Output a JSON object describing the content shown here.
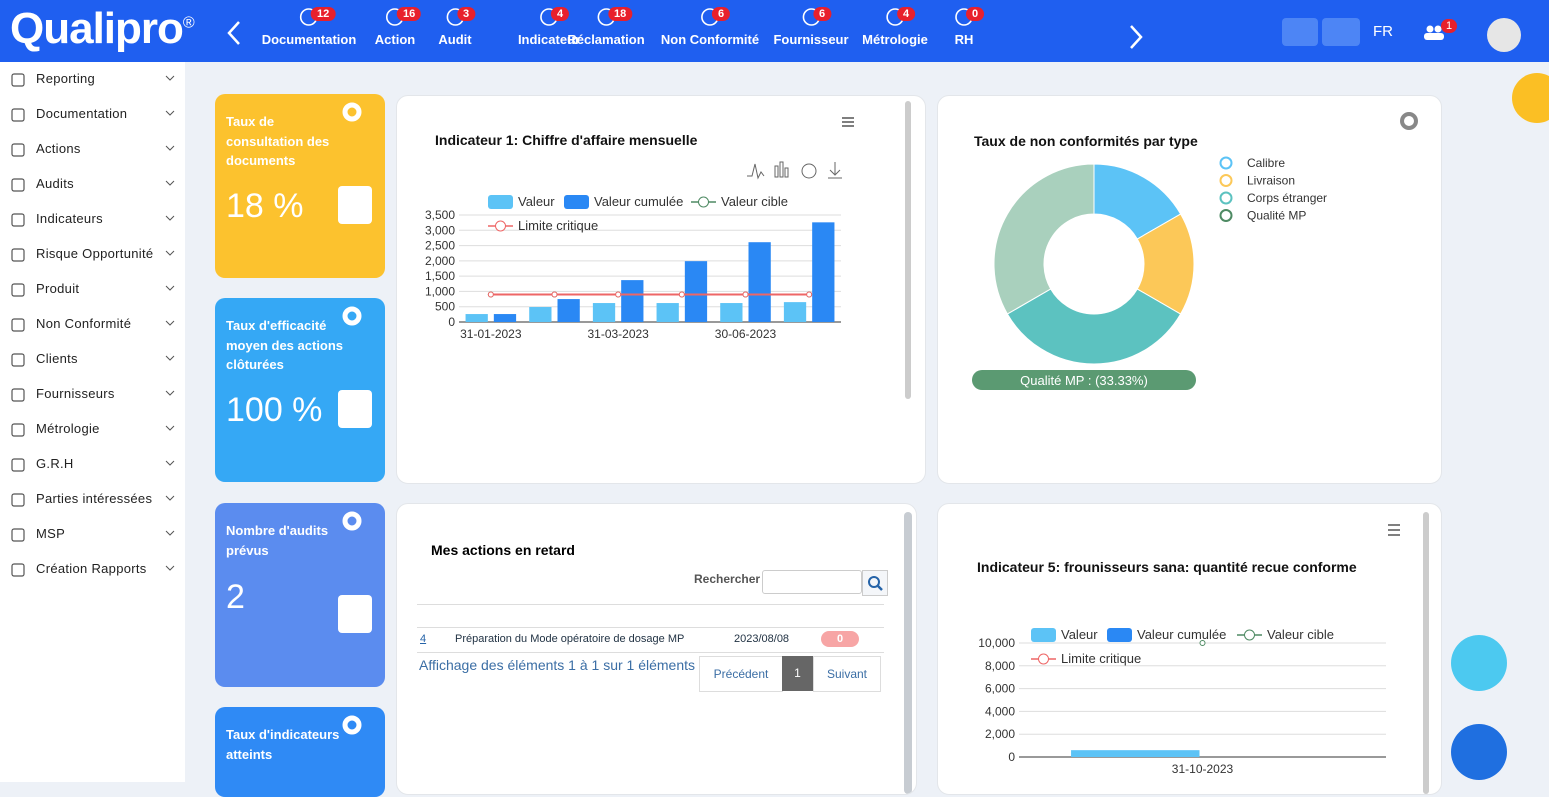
{
  "nav": {
    "logo": "Qualipro",
    "reg": "®",
    "items": [
      {
        "label": "Documentation",
        "count": 12
      },
      {
        "label": "Action",
        "count": 16
      },
      {
        "label": "Audit",
        "count": 3
      },
      {
        "label": "Indicateur",
        "count": 4
      },
      {
        "label": "Réclamation",
        "count": 18
      },
      {
        "label": "Non Conformité",
        "count": 6
      },
      {
        "label": "Fournisseur",
        "count": 6
      },
      {
        "label": "Métrologie",
        "count": 4
      },
      {
        "label": "RH",
        "count": 0
      }
    ],
    "lang": "FR",
    "notifications": 1
  },
  "sidebar": [
    "Reporting",
    "Documentation",
    "Actions",
    "Audits",
    "Indicateurs",
    "Risque Opportunité",
    "Produit",
    "Non Conformité",
    "Clients",
    "Fournisseurs",
    "Métrologie",
    "G.R.H",
    "Parties intéressées",
    "MSP",
    "Création Rapports"
  ],
  "cards": [
    {
      "label": "Taux de consultation des documents",
      "value": "18 %",
      "color": "#fcc22e"
    },
    {
      "label": "Taux d'efficacité moyen des actions clôturées",
      "value": "100 %",
      "color": "#35a8f5"
    },
    {
      "label": "Nombre d'audits prévus",
      "value": "2",
      "color": "#5b8cef"
    },
    {
      "label": "Taux d'indicateurs atteints",
      "color": "#2f8af5"
    }
  ],
  "chart_data": [
    {
      "type": "bar",
      "title": "Indicateur 1: Chiffre d'affaire mensuelle",
      "categories": [
        "31-01-2023",
        null,
        "31-03-2023",
        null,
        "30-06-2023",
        null
      ],
      "series": [
        {
          "name": "Valeur",
          "kind": "bar",
          "color": "#5cc3f6",
          "values": [
            260,
            490,
            620,
            620,
            620,
            650
          ]
        },
        {
          "name": "Valeur cumulée",
          "kind": "bar",
          "color": "#2a88f4",
          "values": [
            260,
            750,
            1370,
            1990,
            2610,
            3260
          ]
        },
        {
          "name": "Valeur cible",
          "kind": "line",
          "color": "#4e8a63",
          "values": [
            900,
            900,
            900,
            900,
            900,
            900
          ]
        },
        {
          "name": "Limite critique",
          "kind": "line",
          "color": "#ee6666",
          "values": [
            900,
            900,
            900,
            900,
            900,
            900
          ]
        }
      ],
      "ylim": [
        0,
        3500
      ],
      "yticks": [
        0,
        500,
        {
          "value": 1000,
          "label": "1,000"
        },
        {
          "value": 1500,
          "label": "1,500"
        },
        {
          "value": 2000,
          "label": "2,000"
        },
        {
          "value": 2500,
          "label": "2,500"
        },
        {
          "value": 3000,
          "label": "3,000"
        },
        {
          "value": 3500,
          "label": "3,500"
        }
      ],
      "grid": true
    },
    {
      "type": "pie",
      "title": "Taux de non conformités par type",
      "categories": [
        "Calibre",
        "Livraison",
        "Corps étranger",
        "Qualité MP"
      ],
      "values": [
        16.67,
        16.67,
        33.33,
        33.33
      ],
      "colors": [
        "#5cc3f6",
        "#fcc858",
        "#5cc2c0",
        "#a9d0bd"
      ],
      "legend_colors": [
        "#5cc3f6",
        "#fcc858",
        "#5cc2c0",
        "#4e8a63"
      ],
      "tooltip": "Qualité MP : (33.33%)"
    },
    {
      "type": "bar",
      "title": "Indicateur 5: frounisseurs sana: quantité recue conforme",
      "categories": [
        "31-10-2023"
      ],
      "series": [
        {
          "name": "Valeur",
          "kind": "bar",
          "color": "#5cc3f6",
          "values": [
            600
          ]
        },
        {
          "name": "Valeur cumulée",
          "kind": "bar",
          "color": "#2a88f4",
          "values": [
            null
          ]
        },
        {
          "name": "Valeur cible",
          "kind": "line",
          "color": "#4e8a63",
          "values": [
            10000
          ]
        },
        {
          "name": "Limite critique",
          "kind": "line",
          "color": "#ee6666",
          "values": [
            null
          ]
        }
      ],
      "ylim": [
        0,
        10000
      ],
      "yticks": [
        0,
        {
          "value": 2000,
          "label": "2,000"
        },
        {
          "value": 4000,
          "label": "4,000"
        },
        {
          "value": 6000,
          "label": "6,000"
        },
        {
          "value": 8000,
          "label": "8,000"
        },
        {
          "value": 10000,
          "label": "10,000"
        }
      ],
      "grid": true
    }
  ],
  "table": {
    "title": "Mes actions en retard",
    "search_label": "Rechercher",
    "rows": [
      [
        "4",
        "Préparation du Mode opératoire de dosage MP",
        "2023/08/08",
        "0"
      ]
    ],
    "info": "Affichage des éléments 1 à 1 sur 1 éléments",
    "pagination": [
      "Précédent",
      "1",
      "Suivant"
    ]
  }
}
